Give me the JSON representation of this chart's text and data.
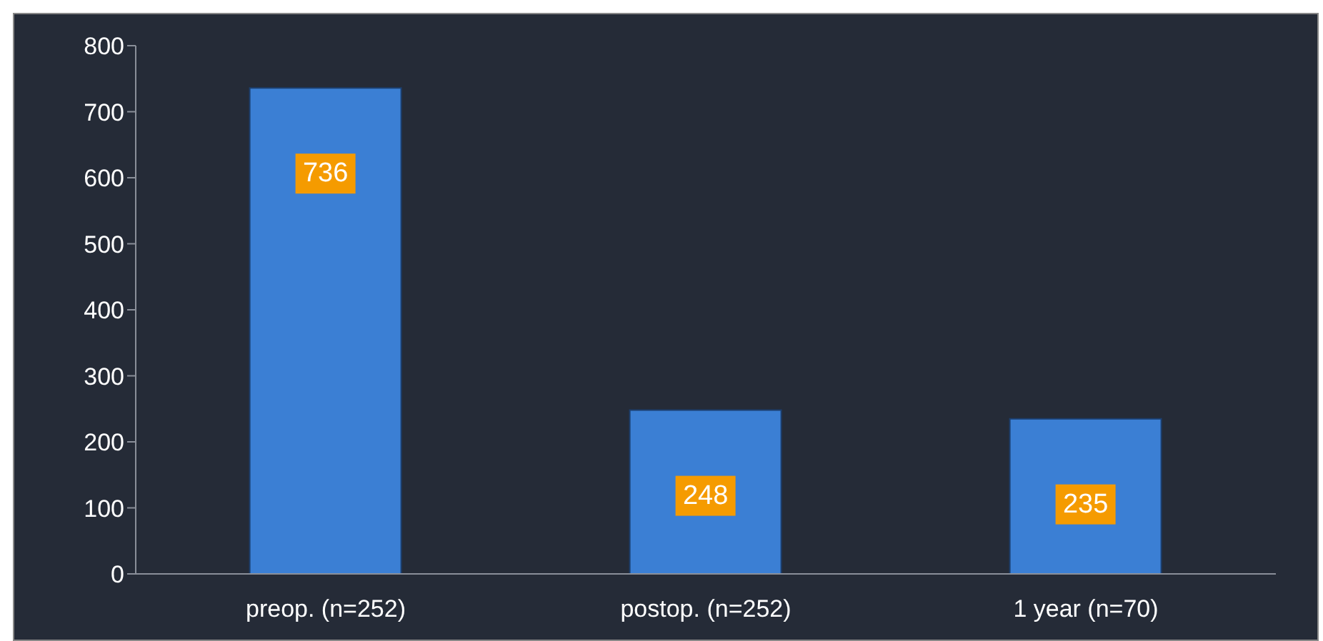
{
  "chart_data": {
    "type": "bar",
    "categories": [
      "preop. (n=252)",
      "postop. (n=252)",
      "1 year (n=70)"
    ],
    "values": [
      736,
      248,
      235
    ],
    "color": "#3b7fd4",
    "ylim": [
      0,
      800
    ],
    "yticks": [
      0,
      100,
      200,
      300,
      400,
      500,
      600,
      700,
      800
    ],
    "data_labels": true
  }
}
